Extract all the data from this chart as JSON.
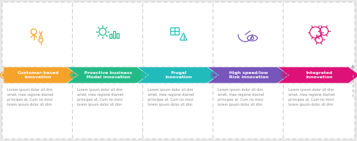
{
  "steps": [
    {
      "title": "Customer-based\nInnovation",
      "color": "#F5A32B",
      "text": "Lorem ipsum dolor sit dim\namet, mea regione diamet\nprincipes at. Cum no movi\nlorem ipsum dolor sit dim"
    },
    {
      "title": "Proactive business\nModel innovation",
      "color": "#22BB88",
      "text": "Lorem ipsum dolor sit dim\namet, mea regione diamet\nprincipes at. Cum no movi\nlorem ipsum dolor sit dim"
    },
    {
      "title": "Frugal\nInnovation",
      "color": "#22BBBB",
      "text": "Lorem ipsum dolor sit dim\namet, mea regione diamet\nprincipes at. Cum no movi\nlorem ipsum dolor sit dim"
    },
    {
      "title": "High speed/low\nRisk innovation",
      "color": "#7755BB",
      "text": "Lorem ipsum dolor sit dim\namet, mea regione diamet\nprincipes at. Cum no movi\nlorem ipsum dolor sit dim"
    },
    {
      "title": "Integrated\nInnovation",
      "color": "#DD1177",
      "text": "Lorem ipsum dolor sit dim\namet, mea regione diamet\nprincipes at. Cum no movi\nlorem ipsum dolor sit dim"
    }
  ],
  "bg_color": "#e8e8e8",
  "card_bg": "#ffffff",
  "card_edge": "#cccccc",
  "text_color": "#888888",
  "timeline_color": "#bbbbbb",
  "arrow_color": "#aaaaaa"
}
